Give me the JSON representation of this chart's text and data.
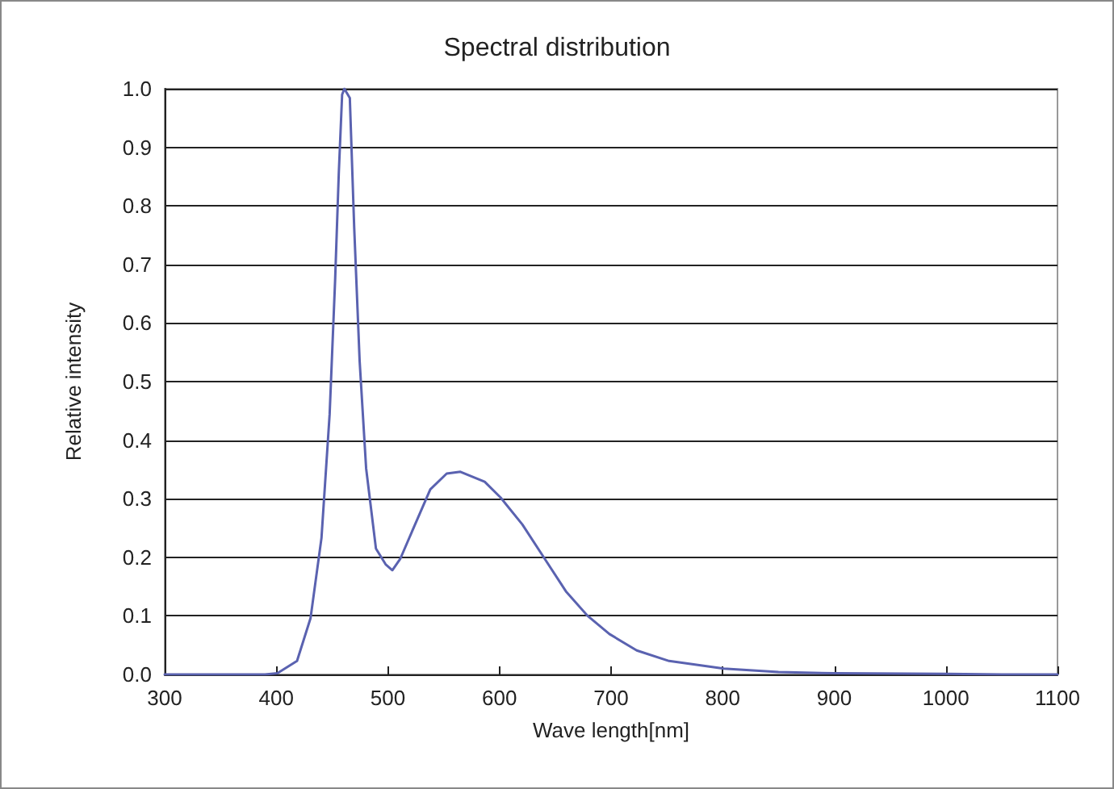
{
  "chart_data": {
    "type": "line",
    "title": "Spectral distribution",
    "xlabel": "Wave length[nm]",
    "ylabel": "Relative intensity",
    "series": [
      {
        "color": "#5a62b0",
        "x": [
          300,
          350,
          390,
          401,
          418.6,
          430.7,
          440.5,
          447.8,
          452.7,
          456,
          459,
          461,
          465.9,
          469.8,
          474.7,
          480.5,
          489.3,
          498,
          504,
          511,
          523.4,
          538,
          552.7,
          565,
          586.7,
          601,
          620.5,
          640,
          659.5,
          679,
          698.5,
          723,
          752,
          801,
          850,
          900,
          1000,
          1050,
          1100
        ],
        "values": [
          0,
          0,
          0,
          0.002,
          0.023,
          0.096,
          0.233,
          0.444,
          0.672,
          0.855,
          0.99,
          1.0,
          0.984,
          0.764,
          0.535,
          0.352,
          0.215,
          0.188,
          0.178,
          0.197,
          0.252,
          0.316,
          0.343,
          0.346,
          0.329,
          0.302,
          0.256,
          0.199,
          0.142,
          0.1,
          0.069,
          0.041,
          0.023,
          0.01,
          0.004,
          0.002,
          0.001,
          0,
          0
        ]
      }
    ],
    "xlim": [
      300,
      1100
    ],
    "xticks": [
      300,
      400,
      500,
      600,
      700,
      800,
      900,
      1000,
      1100
    ],
    "ylim": [
      0,
      1
    ],
    "yticks": [
      {
        "value": 0,
        "label": "0.0"
      },
      {
        "value": 0.1,
        "label": "0.1"
      },
      {
        "value": 0.2,
        "label": "0.2"
      },
      {
        "value": 0.3,
        "label": "0.3"
      },
      {
        "value": 0.4,
        "label": "0.4"
      },
      {
        "value": 0.5,
        "label": "0.5"
      },
      {
        "value": 0.6,
        "label": "0.6"
      },
      {
        "value": 0.7,
        "label": "0.7"
      },
      {
        "value": 0.8,
        "label": "0.8"
      },
      {
        "value": 0.9,
        "label": "0.9"
      },
      {
        "value": 1,
        "label": "1.0"
      }
    ],
    "grid": "y",
    "marker": "none",
    "line_style": "solid"
  }
}
